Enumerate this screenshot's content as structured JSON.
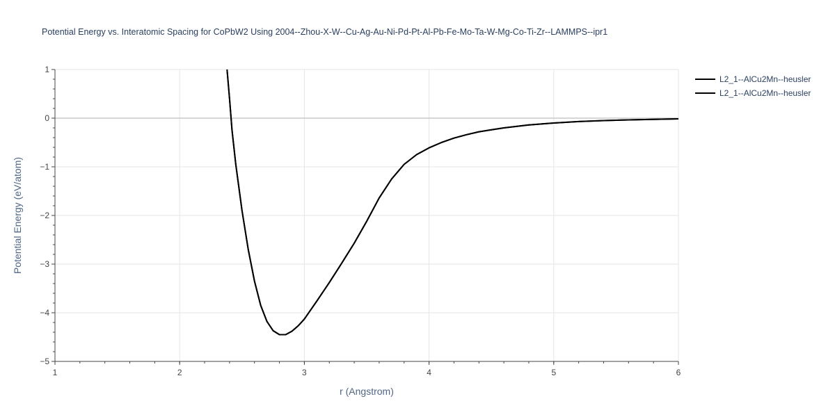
{
  "chart_data": {
    "type": "line",
    "title": "Potential Energy vs. Interatomic Spacing for CoPbW2 Using 2004--Zhou-X-W--Cu-Ag-Au-Ni-Pd-Pt-Al-Pb-Fe-Mo-Ta-W-Mg-Co-Ti-Zr--LAMMPS--ipr1",
    "xlabel": "r (Angstrom)",
    "ylabel": "Potential Energy (eV/atom)",
    "xlim": [
      1,
      6
    ],
    "ylim": [
      -5,
      1
    ],
    "xticks": [
      "1",
      "2",
      "3",
      "4",
      "5",
      "6"
    ],
    "yticks": [
      "1",
      "0",
      "−1",
      "−2",
      "−3",
      "−4",
      "−5"
    ],
    "grid": true,
    "legend_position": "top-right",
    "colors": {
      "line": "#000000",
      "grid": "#e5e5e5",
      "zeroline": "#c8c8c8",
      "axis": "#444444"
    },
    "series": [
      {
        "name": "L2_1--AlCu2Mn--heusler",
        "x": [
          2.38,
          2.4,
          2.42,
          2.45,
          2.5,
          2.55,
          2.6,
          2.65,
          2.7,
          2.75,
          2.8,
          2.85,
          2.9,
          2.95,
          3.0,
          3.1,
          3.2,
          3.3,
          3.4,
          3.5,
          3.6,
          3.7,
          3.8,
          3.9,
          4.0,
          4.1,
          4.2,
          4.3,
          4.4,
          4.5,
          4.6,
          4.7,
          4.8,
          4.9,
          5.0,
          5.2,
          5.4,
          5.6,
          5.8,
          6.0
        ],
        "y": [
          1.0,
          0.4,
          -0.25,
          -0.95,
          -1.9,
          -2.7,
          -3.35,
          -3.85,
          -4.18,
          -4.37,
          -4.45,
          -4.45,
          -4.38,
          -4.27,
          -4.13,
          -3.76,
          -3.38,
          -2.98,
          -2.57,
          -2.12,
          -1.64,
          -1.25,
          -0.95,
          -0.75,
          -0.61,
          -0.5,
          -0.41,
          -0.34,
          -0.28,
          -0.24,
          -0.2,
          -0.17,
          -0.14,
          -0.12,
          -0.1,
          -0.07,
          -0.05,
          -0.035,
          -0.025,
          -0.015
        ]
      },
      {
        "name": "L2_1--AlCu2Mn--heusler",
        "x": [
          2.38,
          2.4,
          2.42,
          2.45,
          2.5,
          2.55,
          2.6,
          2.65,
          2.7,
          2.75,
          2.8,
          2.85,
          2.9,
          2.95,
          3.0,
          3.1,
          3.2,
          3.3,
          3.4,
          3.5,
          3.6,
          3.7,
          3.8,
          3.9,
          4.0,
          4.1,
          4.2,
          4.3,
          4.4,
          4.5,
          4.6,
          4.7,
          4.8,
          4.9,
          5.0,
          5.2,
          5.4,
          5.6,
          5.8,
          6.0
        ],
        "y": [
          1.0,
          0.4,
          -0.25,
          -0.95,
          -1.9,
          -2.7,
          -3.35,
          -3.85,
          -4.18,
          -4.37,
          -4.45,
          -4.45,
          -4.38,
          -4.27,
          -4.13,
          -3.76,
          -3.38,
          -2.98,
          -2.57,
          -2.12,
          -1.64,
          -1.25,
          -0.95,
          -0.75,
          -0.61,
          -0.5,
          -0.41,
          -0.34,
          -0.28,
          -0.24,
          -0.2,
          -0.17,
          -0.14,
          -0.12,
          -0.1,
          -0.07,
          -0.05,
          -0.035,
          -0.025,
          -0.015
        ]
      }
    ]
  }
}
